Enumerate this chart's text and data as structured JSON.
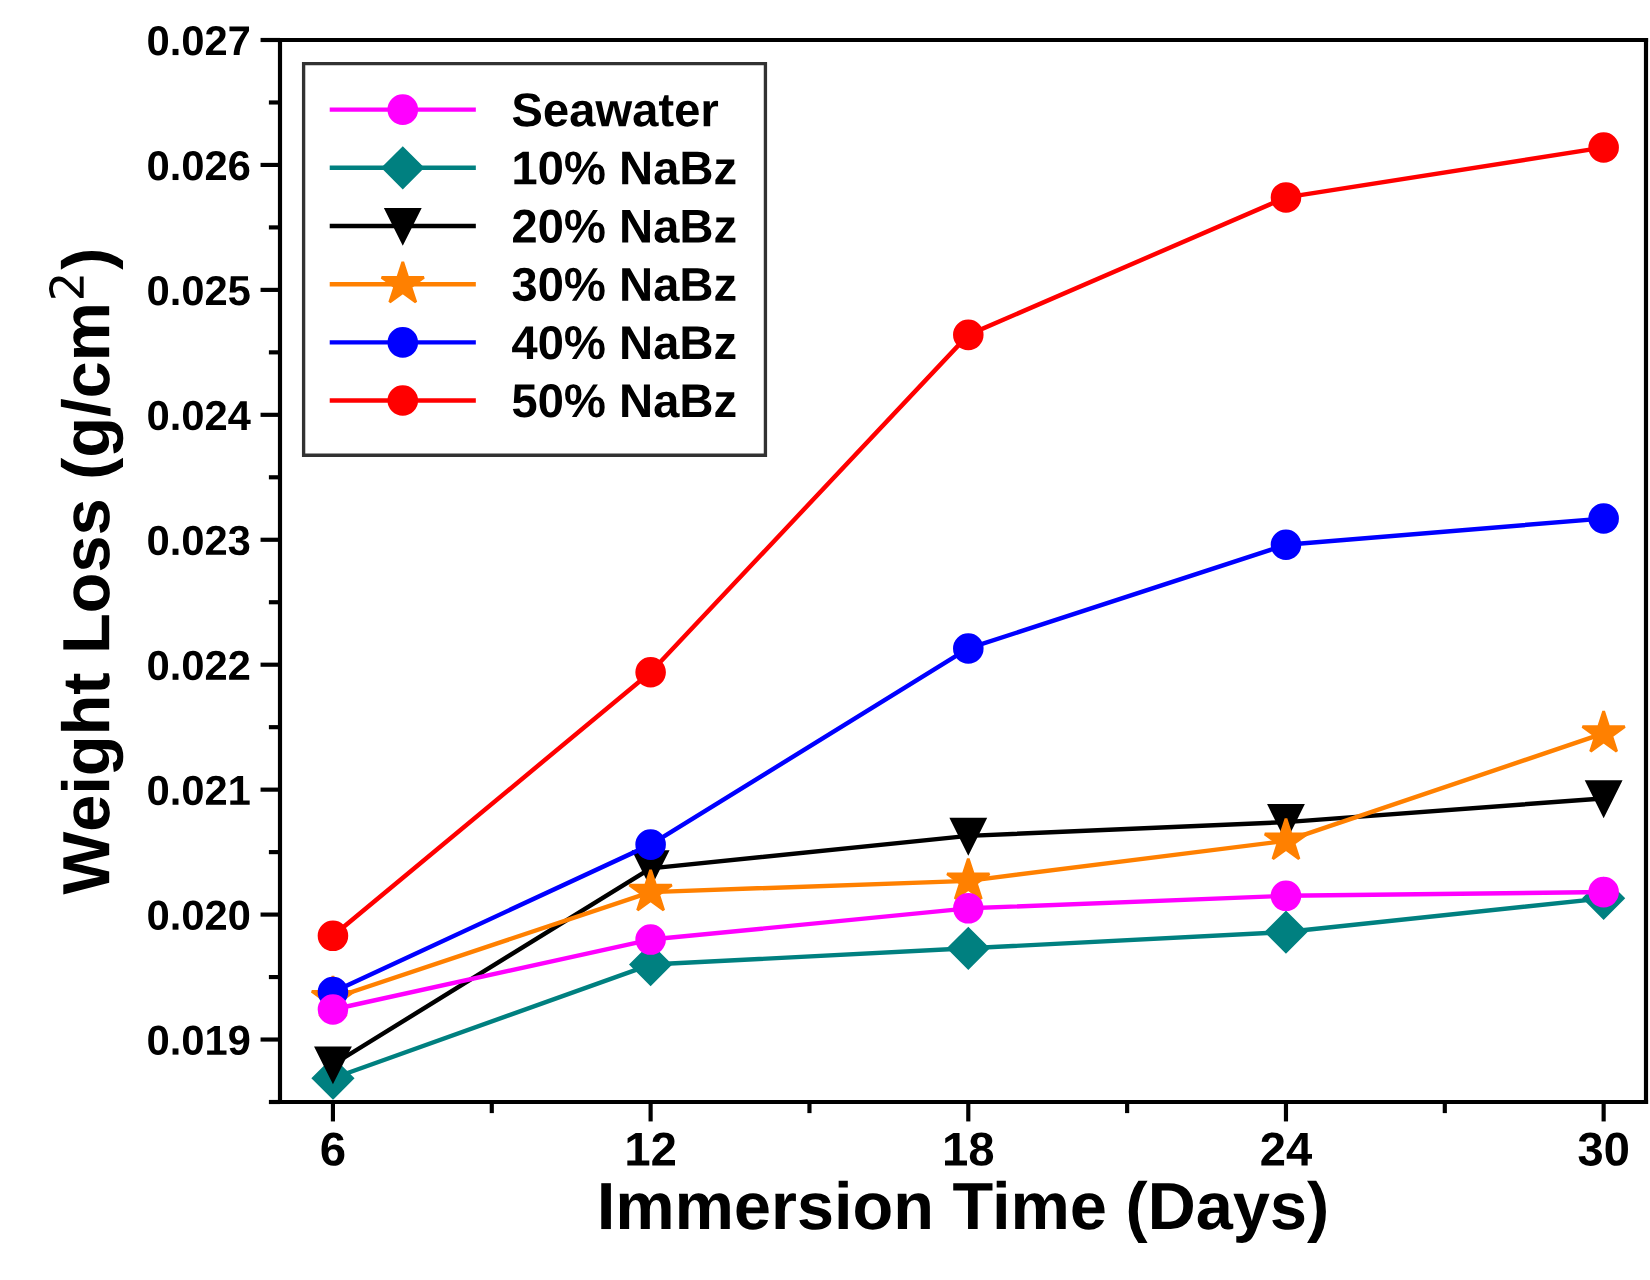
{
  "chart_data": {
    "type": "line",
    "xlabel": "Immersion Time (Days)",
    "ylabel": "Weight Loss (g/cm$^{2}$)",
    "x": [
      6,
      12,
      18,
      24,
      30
    ],
    "xlim": [
      5,
      30.8
    ],
    "xticks": [
      6,
      12,
      18,
      24,
      30
    ],
    "ylim": [
      0.0185,
      0.027
    ],
    "yticks": [
      {
        "value": 0.019,
        "label": "0.019"
      },
      {
        "value": 0.02,
        "label": "0.020"
      },
      {
        "value": 0.021,
        "label": "0.021"
      },
      {
        "value": 0.022,
        "label": "0.022"
      },
      {
        "value": 0.023,
        "label": "0.023"
      },
      {
        "value": 0.024,
        "label": "0.024"
      },
      {
        "value": 0.025,
        "label": "0.025"
      },
      {
        "value": 0.026,
        "label": "0.026"
      },
      {
        "value": 0.027,
        "label": "0.027"
      }
    ],
    "grid": false,
    "legend": "top left",
    "line_style": "solid",
    "series": [
      {
        "name": "Seawater",
        "color": "#ff00ff",
        "marker": "circle",
        "values": [
          0.01924,
          0.0198,
          0.02005,
          0.02015,
          0.02018
        ]
      },
      {
        "name": "10% NaBz",
        "color": "#008080",
        "marker": "diamond",
        "values": [
          0.01869,
          0.0196,
          0.01973,
          0.01986,
          0.02013
        ]
      },
      {
        "name": "20% NaBz",
        "color": "#000000",
        "marker": "triangle_down",
        "values": [
          0.0188,
          0.02037,
          0.02063,
          0.02074,
          0.02093
        ]
      },
      {
        "name": "30% NaBz",
        "color": "#ff8000",
        "marker": "star",
        "values": [
          0.01933,
          0.02018,
          0.02027,
          0.02059,
          0.02145
        ]
      },
      {
        "name": "40% NaBz",
        "color": "#0000ff",
        "marker": "circle",
        "values": [
          0.01938,
          0.02056,
          0.02213,
          0.02296,
          0.02317
        ]
      },
      {
        "name": "50% NaBz",
        "color": "#ff0000",
        "marker": "circle",
        "values": [
          0.01983,
          0.02194,
          0.02464,
          0.02574,
          0.02614
        ]
      }
    ]
  }
}
